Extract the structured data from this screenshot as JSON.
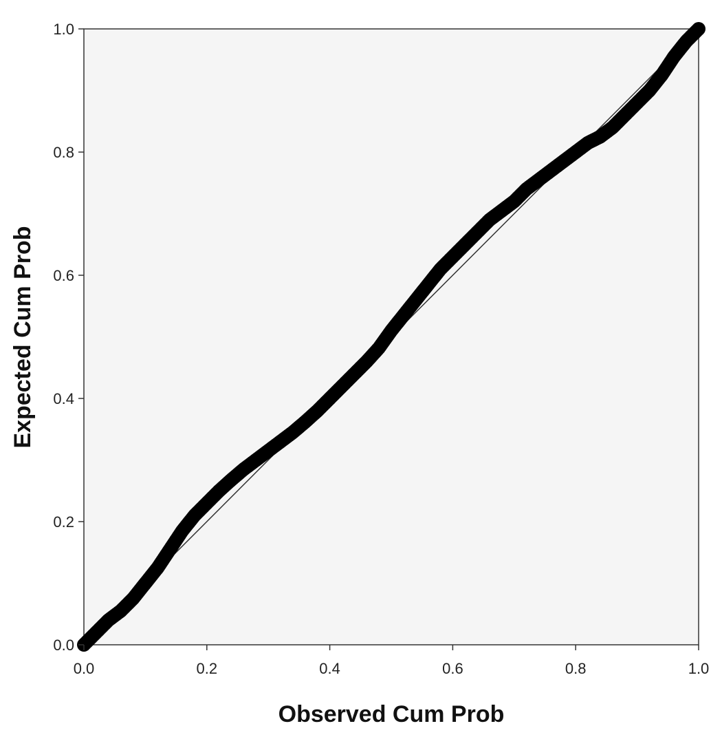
{
  "chart_data": {
    "type": "scatter",
    "xlabel": "Observed Cum Prob",
    "ylabel": "Expected Cum Prob",
    "xlim": [
      0.0,
      1.0
    ],
    "ylim": [
      0.0,
      1.0
    ],
    "x_ticks": [
      "0.0",
      "0.2",
      "0.4",
      "0.6",
      "0.8",
      "1.0"
    ],
    "y_ticks": [
      "0.0",
      "0.2",
      "0.4",
      "0.6",
      "0.8",
      "1.0"
    ],
    "grid": false,
    "reference_line": [
      [
        0.0,
        0.0
      ],
      [
        1.0,
        1.0
      ]
    ],
    "series": [
      {
        "x": [
          0.0,
          0.02,
          0.04,
          0.06,
          0.08,
          0.1,
          0.12,
          0.14,
          0.16,
          0.18,
          0.2,
          0.22,
          0.24,
          0.26,
          0.28,
          0.3,
          0.32,
          0.34,
          0.36,
          0.38,
          0.4,
          0.42,
          0.44,
          0.46,
          0.48,
          0.5,
          0.52,
          0.54,
          0.56,
          0.58,
          0.6,
          0.62,
          0.64,
          0.66,
          0.68,
          0.7,
          0.72,
          0.74,
          0.76,
          0.78,
          0.8,
          0.82,
          0.84,
          0.86,
          0.88,
          0.9,
          0.92,
          0.94,
          0.96,
          0.98,
          1.0
        ],
        "y": [
          0.0,
          0.02,
          0.04,
          0.055,
          0.075,
          0.1,
          0.125,
          0.155,
          0.185,
          0.21,
          0.23,
          0.25,
          0.268,
          0.285,
          0.3,
          0.315,
          0.33,
          0.345,
          0.362,
          0.38,
          0.4,
          0.42,
          0.44,
          0.46,
          0.482,
          0.51,
          0.535,
          0.56,
          0.585,
          0.61,
          0.63,
          0.65,
          0.67,
          0.69,
          0.705,
          0.72,
          0.74,
          0.755,
          0.77,
          0.785,
          0.8,
          0.815,
          0.825,
          0.84,
          0.86,
          0.88,
          0.9,
          0.925,
          0.955,
          0.98,
          1.0
        ]
      }
    ]
  }
}
